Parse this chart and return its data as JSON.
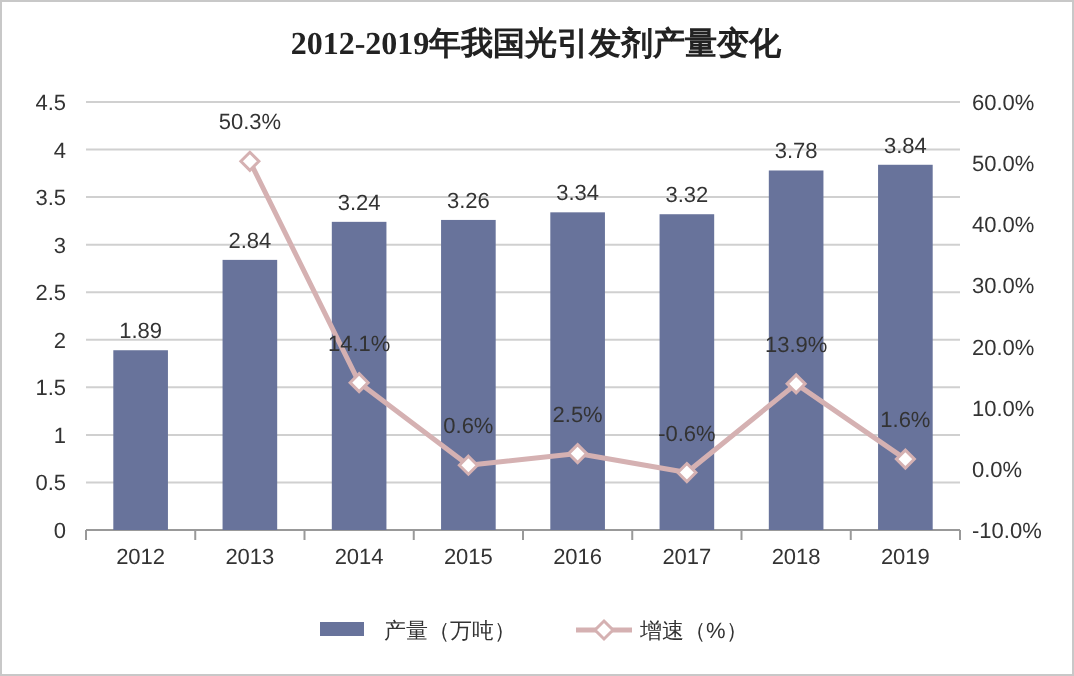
{
  "chart_data": {
    "type": "bar",
    "title": "2012-2019年我国光引发剂产量变化",
    "categories": [
      "2012",
      "2013",
      "2014",
      "2015",
      "2016",
      "2017",
      "2018",
      "2019"
    ],
    "series": [
      {
        "name": "产量（万吨）",
        "color": "#68739b",
        "values": [
          1.89,
          2.84,
          3.24,
          3.26,
          3.34,
          3.32,
          3.78,
          3.84
        ],
        "value_labels": [
          "1.89",
          "2.84",
          "3.24",
          "3.26",
          "3.34",
          "3.32",
          "3.78",
          "3.84"
        ]
      },
      {
        "name": "增速（%）",
        "type": "line",
        "axis": "y2",
        "color": "#d5b1b2",
        "marker": "diamond",
        "values": [
          null,
          50.3,
          14.1,
          0.6,
          2.5,
          -0.6,
          13.9,
          1.6
        ],
        "value_labels": [
          null,
          "50.3%",
          "14.1%",
          "0.6%",
          "2.5%",
          "-0.6%",
          "13.9%",
          "1.6%"
        ]
      }
    ],
    "ylim": [
      0,
      4.5
    ],
    "yticks": [
      0,
      0.5,
      1,
      1.5,
      2,
      2.5,
      3,
      3.5,
      4,
      4.5
    ],
    "y2lim": [
      -10,
      60
    ],
    "y2ticks": [
      {
        "value": -10,
        "label": "-10.0%"
      },
      {
        "value": 0,
        "label": "0.0%"
      },
      {
        "value": 10,
        "label": "10.0%"
      },
      {
        "value": 20,
        "label": "20.0%"
      },
      {
        "value": 30,
        "label": "30.0%"
      },
      {
        "value": 40,
        "label": "40.0%"
      },
      {
        "value": 50,
        "label": "50.0%"
      },
      {
        "value": 60,
        "label": "60.0%"
      }
    ],
    "grid": "y",
    "legend": "bottom"
  }
}
